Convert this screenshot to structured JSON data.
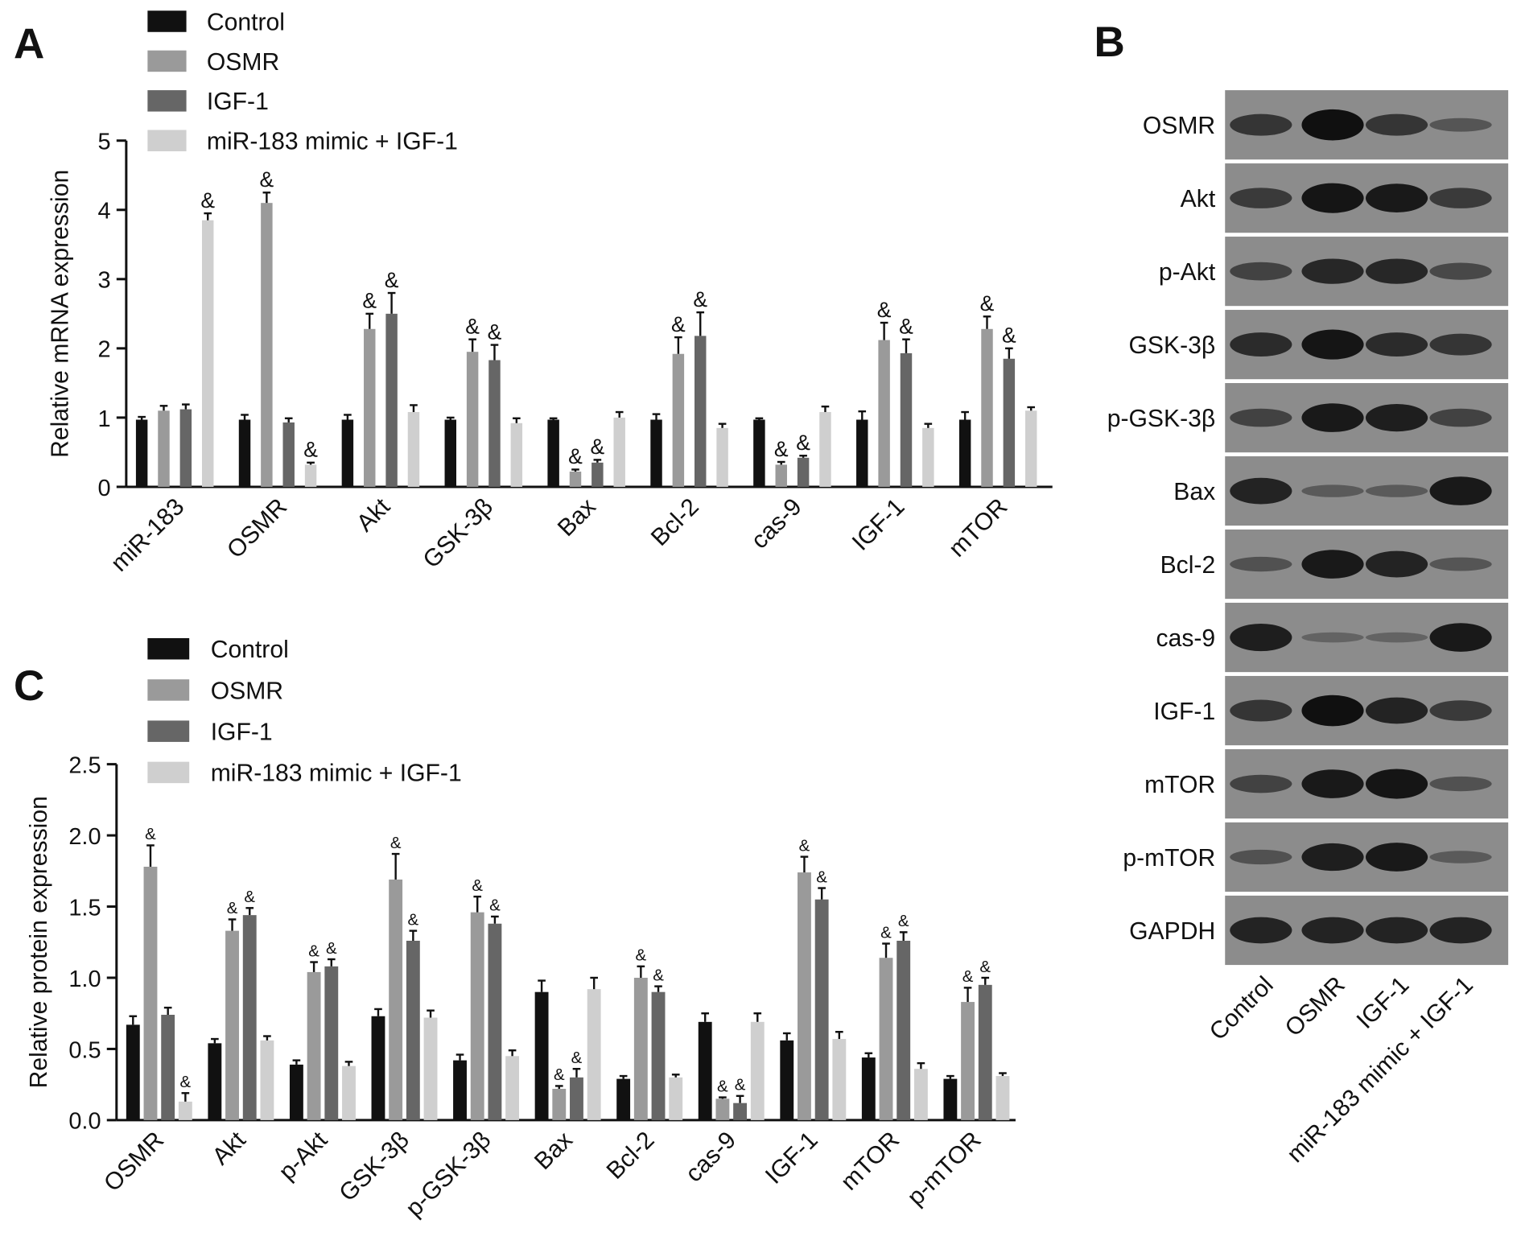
{
  "colors": {
    "Control": "#111111",
    "OSMR": "#9a9a9a",
    "IGF-1": "#666666",
    "miR-183 mimic + IGF-1": "#cfcfcf",
    "blot_bg": "#8c8c8c",
    "band": "#101010"
  },
  "panel_labels": {
    "a": "A",
    "b": "B",
    "c": "C"
  },
  "chart_data": [
    {
      "type": "bar",
      "panel": "A",
      "ylabel": "Relative mRNA expression",
      "ylim": [
        0,
        5
      ],
      "yticks": [
        "0",
        "1",
        "2",
        "3",
        "4",
        "5"
      ],
      "legend": [
        "Control",
        "OSMR",
        "IGF-1",
        "miR-183 mimic + IGF-1"
      ],
      "legend_position": "top-left",
      "significance_mark": "&",
      "categories": [
        "miR-183",
        "OSMR",
        "Akt",
        "GSK-3β",
        "Bax",
        "Bcl-2",
        "cas-9",
        "IGF-1",
        "mTOR"
      ],
      "series": [
        {
          "name": "Control",
          "values": [
            0.97,
            0.97,
            0.97,
            0.97,
            0.97,
            0.97,
            0.97,
            0.97,
            0.97
          ],
          "errors": [
            0.04,
            0.07,
            0.07,
            0.03,
            0.02,
            0.08,
            0.02,
            0.12,
            0.11
          ],
          "sig": [
            0,
            0,
            0,
            0,
            0,
            0,
            0,
            0,
            0
          ]
        },
        {
          "name": "OSMR",
          "values": [
            1.1,
            4.1,
            2.28,
            1.95,
            0.22,
            1.92,
            0.32,
            2.12,
            2.28
          ],
          "errors": [
            0.07,
            0.15,
            0.22,
            0.18,
            0.03,
            0.24,
            0.04,
            0.25,
            0.18
          ],
          "sig": [
            0,
            1,
            1,
            1,
            1,
            1,
            1,
            1,
            1
          ]
        },
        {
          "name": "IGF-1",
          "values": [
            1.12,
            0.93,
            2.5,
            1.83,
            0.35,
            2.18,
            0.42,
            1.93,
            1.85
          ],
          "errors": [
            0.07,
            0.06,
            0.3,
            0.22,
            0.04,
            0.34,
            0.03,
            0.2,
            0.15
          ],
          "sig": [
            0,
            0,
            1,
            1,
            1,
            1,
            1,
            1,
            1
          ]
        },
        {
          "name": "miR-183 mimic + IGF-1",
          "values": [
            3.85,
            0.32,
            1.08,
            0.92,
            1.0,
            0.85,
            1.08,
            0.85,
            1.1
          ],
          "errors": [
            0.1,
            0.03,
            0.1,
            0.07,
            0.08,
            0.06,
            0.08,
            0.06,
            0.05
          ],
          "sig": [
            1,
            1,
            0,
            0,
            0,
            0,
            0,
            0,
            0
          ]
        }
      ]
    },
    {
      "type": "bar",
      "panel": "C",
      "ylabel": "Relative protein expression",
      "ylim": [
        0,
        2.5
      ],
      "yticks": [
        "0.0",
        "0.5",
        "1.0",
        "1.5",
        "2.0",
        "2.5"
      ],
      "legend": [
        "Control",
        "OSMR",
        "IGF-1",
        "miR-183 mimic + IGF-1"
      ],
      "legend_position": "top-left",
      "significance_mark": "&",
      "categories": [
        "OSMR",
        "Akt",
        "p-Akt",
        "GSK-3β",
        "p-GSK-3β",
        "Bax",
        "Bcl-2",
        "cas-9",
        "IGF-1",
        "mTOR",
        "p-mTOR"
      ],
      "series": [
        {
          "name": "Control",
          "values": [
            0.67,
            0.54,
            0.39,
            0.73,
            0.42,
            0.9,
            0.29,
            0.69,
            0.56,
            0.44,
            0.29
          ],
          "errors": [
            0.06,
            0.03,
            0.03,
            0.05,
            0.04,
            0.08,
            0.02,
            0.06,
            0.05,
            0.03,
            0.02
          ],
          "sig": [
            0,
            0,
            0,
            0,
            0,
            0,
            0,
            0,
            0,
            0,
            0
          ]
        },
        {
          "name": "OSMR",
          "values": [
            1.78,
            1.33,
            1.04,
            1.69,
            1.46,
            0.22,
            1.0,
            0.15,
            1.74,
            1.14,
            0.83
          ],
          "errors": [
            0.15,
            0.08,
            0.07,
            0.18,
            0.11,
            0.02,
            0.08,
            0.01,
            0.11,
            0.1,
            0.1
          ],
          "sig": [
            1,
            1,
            1,
            1,
            1,
            1,
            1,
            1,
            1,
            1,
            1
          ]
        },
        {
          "name": "IGF-1",
          "values": [
            0.74,
            1.44,
            1.08,
            1.26,
            1.38,
            0.3,
            0.9,
            0.12,
            1.55,
            1.26,
            0.95
          ],
          "errors": [
            0.05,
            0.05,
            0.05,
            0.07,
            0.05,
            0.06,
            0.04,
            0.05,
            0.08,
            0.06,
            0.05
          ],
          "sig": [
            0,
            1,
            1,
            1,
            1,
            1,
            1,
            1,
            1,
            1,
            1
          ]
        },
        {
          "name": "miR-183 mimic + IGF-1",
          "values": [
            0.13,
            0.56,
            0.38,
            0.72,
            0.45,
            0.92,
            0.3,
            0.69,
            0.57,
            0.36,
            0.31
          ],
          "errors": [
            0.06,
            0.03,
            0.03,
            0.05,
            0.04,
            0.08,
            0.02,
            0.06,
            0.05,
            0.04,
            0.02
          ],
          "sig": [
            1,
            0,
            0,
            0,
            0,
            0,
            0,
            0,
            0,
            0,
            0
          ]
        }
      ]
    }
  ],
  "western_blot": {
    "panel": "B",
    "lanes": [
      "Control",
      "OSMR",
      "IGF-1",
      "miR-183 mimic + IGF-1"
    ],
    "rows": [
      {
        "label": "OSMR",
        "intensity": [
          0.6,
          1.0,
          0.6,
          0.25
        ]
      },
      {
        "label": "Akt",
        "intensity": [
          0.55,
          0.95,
          0.9,
          0.55
        ]
      },
      {
        "label": "p-Akt",
        "intensity": [
          0.45,
          0.75,
          0.75,
          0.4
        ]
      },
      {
        "label": "GSK-3β",
        "intensity": [
          0.7,
          0.95,
          0.7,
          0.6
        ]
      },
      {
        "label": "p-GSK-3β",
        "intensity": [
          0.45,
          0.9,
          0.85,
          0.45
        ]
      },
      {
        "label": "Bax",
        "intensity": [
          0.8,
          0.2,
          0.2,
          0.9
        ]
      },
      {
        "label": "Bcl-2",
        "intensity": [
          0.3,
          0.9,
          0.8,
          0.25
        ]
      },
      {
        "label": "cas-9",
        "intensity": [
          0.85,
          0.1,
          0.1,
          0.9
        ]
      },
      {
        "label": "IGF-1",
        "intensity": [
          0.6,
          1.0,
          0.8,
          0.55
        ]
      },
      {
        "label": "mTOR",
        "intensity": [
          0.45,
          0.9,
          0.95,
          0.3
        ]
      },
      {
        "label": "p-mTOR",
        "intensity": [
          0.3,
          0.85,
          0.9,
          0.2
        ]
      },
      {
        "label": "GAPDH",
        "intensity": [
          0.8,
          0.8,
          0.8,
          0.8
        ]
      }
    ]
  }
}
